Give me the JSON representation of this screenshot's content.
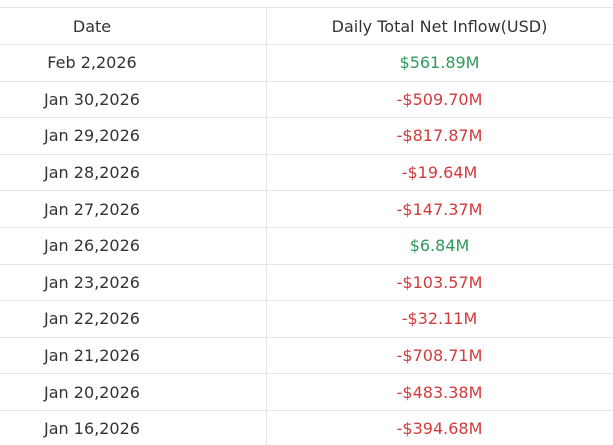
{
  "table": {
    "header": [
      "Date",
      "Daily Total Net Inflow(USD)"
    ],
    "rows": [
      {
        "date": "Feb 2,2026",
        "inflow": "$561.89M",
        "color": "#2f9a5c"
      },
      {
        "date": "Jan 30,2026",
        "inflow": "-$509.70M",
        "color": "#d23b3b"
      },
      {
        "date": "Jan 29,2026",
        "inflow": "-$817.87M",
        "color": "#d23b3b"
      },
      {
        "date": "Jan 28,2026",
        "inflow": "-$19.64M",
        "color": "#d23b3b"
      },
      {
        "date": "Jan 27,2026",
        "inflow": "-$147.37M",
        "color": "#d23b3b"
      },
      {
        "date": "Jan 26,2026",
        "inflow": "$6.84M",
        "color": "#2f9a5c"
      },
      {
        "date": "Jan 23,2026",
        "inflow": "-$103.57M",
        "color": "#d23b3b"
      },
      {
        "date": "Jan 22,2026",
        "inflow": "-$32.11M",
        "color": "#d23b3b"
      },
      {
        "date": "Jan 21,2026",
        "inflow": "-$708.71M",
        "color": "#d23b3b"
      },
      {
        "date": "Jan 20,2026",
        "inflow": "-$483.38M",
        "color": "#d23b3b"
      },
      {
        "date": "Jan 16,2026",
        "inflow": "-$394.68M",
        "color": "#d23b3b"
      }
    ]
  }
}
